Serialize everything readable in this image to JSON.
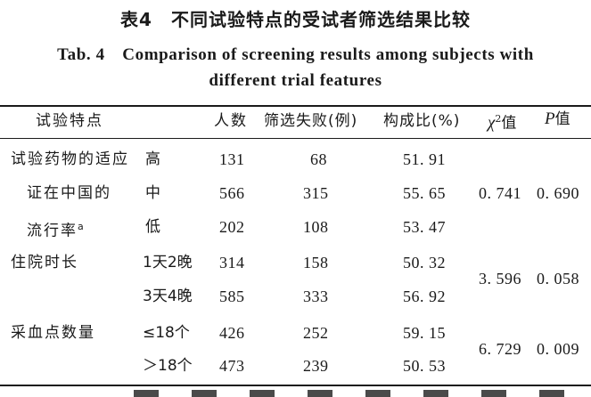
{
  "title_cn": "表4　不同试验特点的受试者筛选结果比较",
  "title_en_line1": "Tab. 4　Comparison of screening results among subjects with",
  "title_en_line2": "different trial features",
  "headers": {
    "feature": "试验特点",
    "count": "人数",
    "fail": "筛选失败(例)",
    "ratio": "构成比(%)",
    "chi_sym": "χ",
    "chi_sup": "2",
    "chi_suffix": "值",
    "p_sym": "P",
    "p_suffix": "值"
  },
  "groups": [
    {
      "label_lines": [
        "试验药物的适应",
        "证在中国的",
        "流行率"
      ],
      "label_sup": "a",
      "chi2": "0. 741",
      "p": "0. 690",
      "rows": [
        {
          "level": "高",
          "n": "131",
          "fail": "68",
          "ratio": "51. 91"
        },
        {
          "level": "中",
          "n": "566",
          "fail": "315",
          "ratio": "55. 65"
        },
        {
          "level": "低",
          "n": "202",
          "fail": "108",
          "ratio": "53. 47"
        }
      ]
    },
    {
      "label_lines": [
        "住院时长"
      ],
      "chi2": "3. 596",
      "p": "0. 058",
      "rows": [
        {
          "level": "1天2晚",
          "n": "314",
          "fail": "158",
          "ratio": "50. 32"
        },
        {
          "level": "3天4晚",
          "n": "585",
          "fail": "333",
          "ratio": "56. 92"
        }
      ]
    },
    {
      "label_lines": [
        "采血点数量"
      ],
      "chi2": "6. 729",
      "p": "0. 009",
      "rows": [
        {
          "level": "≤18个",
          "n": "426",
          "fail": "252",
          "ratio": "59. 15"
        },
        {
          "level": "＞18个",
          "n": "473",
          "fail": "239",
          "ratio": "50. 53"
        }
      ]
    }
  ]
}
